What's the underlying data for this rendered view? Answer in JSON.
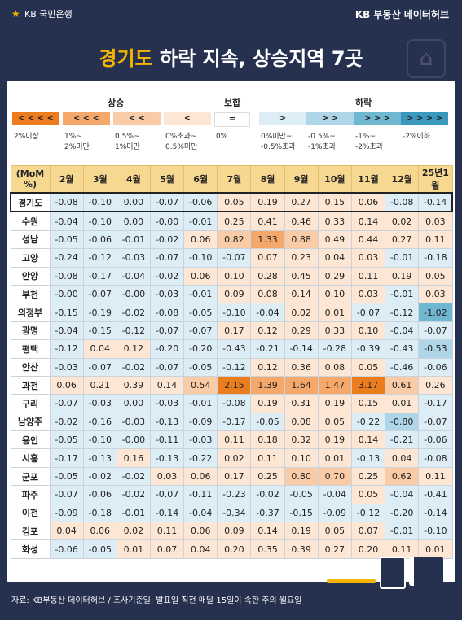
{
  "header": {
    "bank_logo": "KB 국민은행",
    "brand": "KB 부동산  데이터허브",
    "title_highlight": "경기도",
    "title_rest": " 하락 지속, 상승지역 7곳"
  },
  "legend": {
    "rise_label": "상승",
    "flat_label": "보합",
    "fall_label": "하락",
    "boxes": [
      {
        "symbol": "< < < <",
        "color": "#ec7d1f",
        "label": "2%이상"
      },
      {
        "symbol": "< < <",
        "color": "#f5a86a",
        "label": "1%~\n2%미만"
      },
      {
        "symbol": "< <",
        "color": "#f9cba6",
        "label": "0.5%~\n1%미만"
      },
      {
        "symbol": "<",
        "color": "#fde6d3",
        "label": "0%초과~\n0.5%미만"
      },
      {
        "symbol": "=",
        "color": "#ffffff",
        "label": "0%"
      },
      {
        "symbol": ">",
        "color": "#dcedf6",
        "label": "0%미만~\n-0.5%초과"
      },
      {
        "symbol": "> >",
        "color": "#aed6e8",
        "label": "-0.5%~\n-1%초과"
      },
      {
        "symbol": "> > >",
        "color": "#70b7d2",
        "label": "-1%~\n-2%초과"
      },
      {
        "symbol": "> > > >",
        "color": "#3a98bd",
        "label": "-2%이하"
      }
    ]
  },
  "chart_data": {
    "type": "table",
    "title": "경기도 하락 지속, 상승지역 7곳",
    "corner_label": "(MoM %)",
    "columns": [
      "2월",
      "3월",
      "4월",
      "5월",
      "6월",
      "7월",
      "8월",
      "9월",
      "10월",
      "11월",
      "12월",
      "25년1월"
    ],
    "rows": [
      {
        "region": "경기도",
        "values": [
          -0.08,
          -0.1,
          0.0,
          -0.07,
          -0.06,
          0.05,
          0.19,
          0.27,
          0.15,
          0.06,
          -0.08,
          -0.14
        ]
      },
      {
        "region": "수원",
        "values": [
          -0.04,
          -0.1,
          0.0,
          -0.0,
          -0.01,
          0.25,
          0.41,
          0.46,
          0.33,
          0.14,
          0.02,
          0.03
        ]
      },
      {
        "region": "성남",
        "values": [
          -0.05,
          -0.06,
          -0.01,
          -0.02,
          0.06,
          0.82,
          1.33,
          0.88,
          0.49,
          0.44,
          0.27,
          0.11
        ]
      },
      {
        "region": "고양",
        "values": [
          -0.24,
          -0.12,
          -0.03,
          -0.07,
          -0.1,
          -0.07,
          0.07,
          0.23,
          0.04,
          0.03,
          -0.01,
          -0.18
        ]
      },
      {
        "region": "안양",
        "values": [
          -0.08,
          -0.17,
          -0.04,
          -0.02,
          0.06,
          0.1,
          0.28,
          0.45,
          0.29,
          0.11,
          0.19,
          0.05
        ]
      },
      {
        "region": "부천",
        "values": [
          -0.0,
          -0.07,
          -0.0,
          -0.03,
          -0.01,
          0.09,
          0.08,
          0.14,
          0.1,
          0.03,
          -0.01,
          0.03
        ]
      },
      {
        "region": "의정부",
        "values": [
          -0.15,
          -0.19,
          -0.02,
          -0.08,
          -0.05,
          -0.1,
          -0.04,
          0.02,
          0.01,
          -0.07,
          -0.12,
          -1.02
        ]
      },
      {
        "region": "광명",
        "values": [
          -0.04,
          -0.15,
          -0.12,
          -0.07,
          -0.07,
          0.17,
          0.12,
          0.29,
          0.33,
          0.1,
          -0.04,
          -0.07
        ]
      },
      {
        "region": "평택",
        "values": [
          -0.12,
          0.04,
          0.12,
          -0.2,
          -0.2,
          -0.43,
          -0.21,
          -0.14,
          -0.28,
          -0.39,
          -0.43,
          -0.53
        ]
      },
      {
        "region": "안산",
        "values": [
          -0.03,
          -0.07,
          -0.02,
          -0.07,
          -0.05,
          -0.12,
          0.12,
          0.36,
          0.08,
          0.05,
          -0.46,
          -0.06
        ]
      },
      {
        "region": "과천",
        "values": [
          0.06,
          0.21,
          0.39,
          0.14,
          0.54,
          2.15,
          1.39,
          1.64,
          1.47,
          3.17,
          0.61,
          0.26
        ]
      },
      {
        "region": "구리",
        "values": [
          -0.07,
          -0.03,
          0.0,
          -0.03,
          -0.01,
          -0.08,
          0.19,
          0.31,
          0.19,
          0.15,
          0.01,
          -0.17
        ]
      },
      {
        "region": "남양주",
        "values": [
          -0.02,
          -0.16,
          -0.03,
          -0.13,
          -0.09,
          -0.17,
          -0.05,
          0.08,
          0.05,
          -0.22,
          -0.8,
          -0.07
        ]
      },
      {
        "region": "용인",
        "values": [
          -0.05,
          -0.1,
          -0.0,
          -0.11,
          -0.03,
          0.11,
          0.18,
          0.32,
          0.19,
          0.14,
          -0.21,
          -0.06
        ]
      },
      {
        "region": "시흥",
        "values": [
          -0.17,
          -0.13,
          0.16,
          -0.13,
          -0.22,
          0.02,
          0.11,
          0.1,
          0.01,
          -0.13,
          0.04,
          -0.08
        ]
      },
      {
        "region": "군포",
        "values": [
          -0.05,
          -0.02,
          -0.02,
          0.03,
          0.06,
          0.17,
          0.25,
          0.8,
          0.7,
          0.25,
          0.62,
          0.11
        ]
      },
      {
        "region": "파주",
        "values": [
          -0.07,
          -0.06,
          -0.02,
          -0.07,
          -0.11,
          -0.23,
          -0.02,
          -0.05,
          -0.04,
          0.05,
          -0.04,
          -0.41
        ]
      },
      {
        "region": "이천",
        "values": [
          -0.09,
          -0.18,
          -0.01,
          -0.14,
          -0.04,
          -0.34,
          -0.37,
          -0.15,
          -0.09,
          -0.12,
          -0.2,
          -0.14
        ]
      },
      {
        "region": "김포",
        "values": [
          0.04,
          0.06,
          0.02,
          0.11,
          0.06,
          0.09,
          0.14,
          0.19,
          0.05,
          0.07,
          -0.01,
          -0.1
        ]
      },
      {
        "region": "화성",
        "values": [
          -0.06,
          -0.05,
          0.01,
          0.07,
          0.04,
          0.2,
          0.35,
          0.39,
          0.27,
          0.2,
          0.11,
          0.01
        ]
      }
    ],
    "color_scale": {
      "up_2": "#ec7d1f",
      "up_1": "#f5a86a",
      "up_05": "#f9cba6",
      "up_0": "#fde6d3",
      "flat": "#ffffff",
      "down_0": "#dcedf6",
      "down_05": "#aed6e8",
      "down_1": "#70b7d2",
      "down_2": "#3a98bd"
    }
  },
  "footer": {
    "source": "자료: KB부동산 데이터허브 / 조사기준일: 발표일 직전 매달 15일이 속한 주의 월요일"
  }
}
